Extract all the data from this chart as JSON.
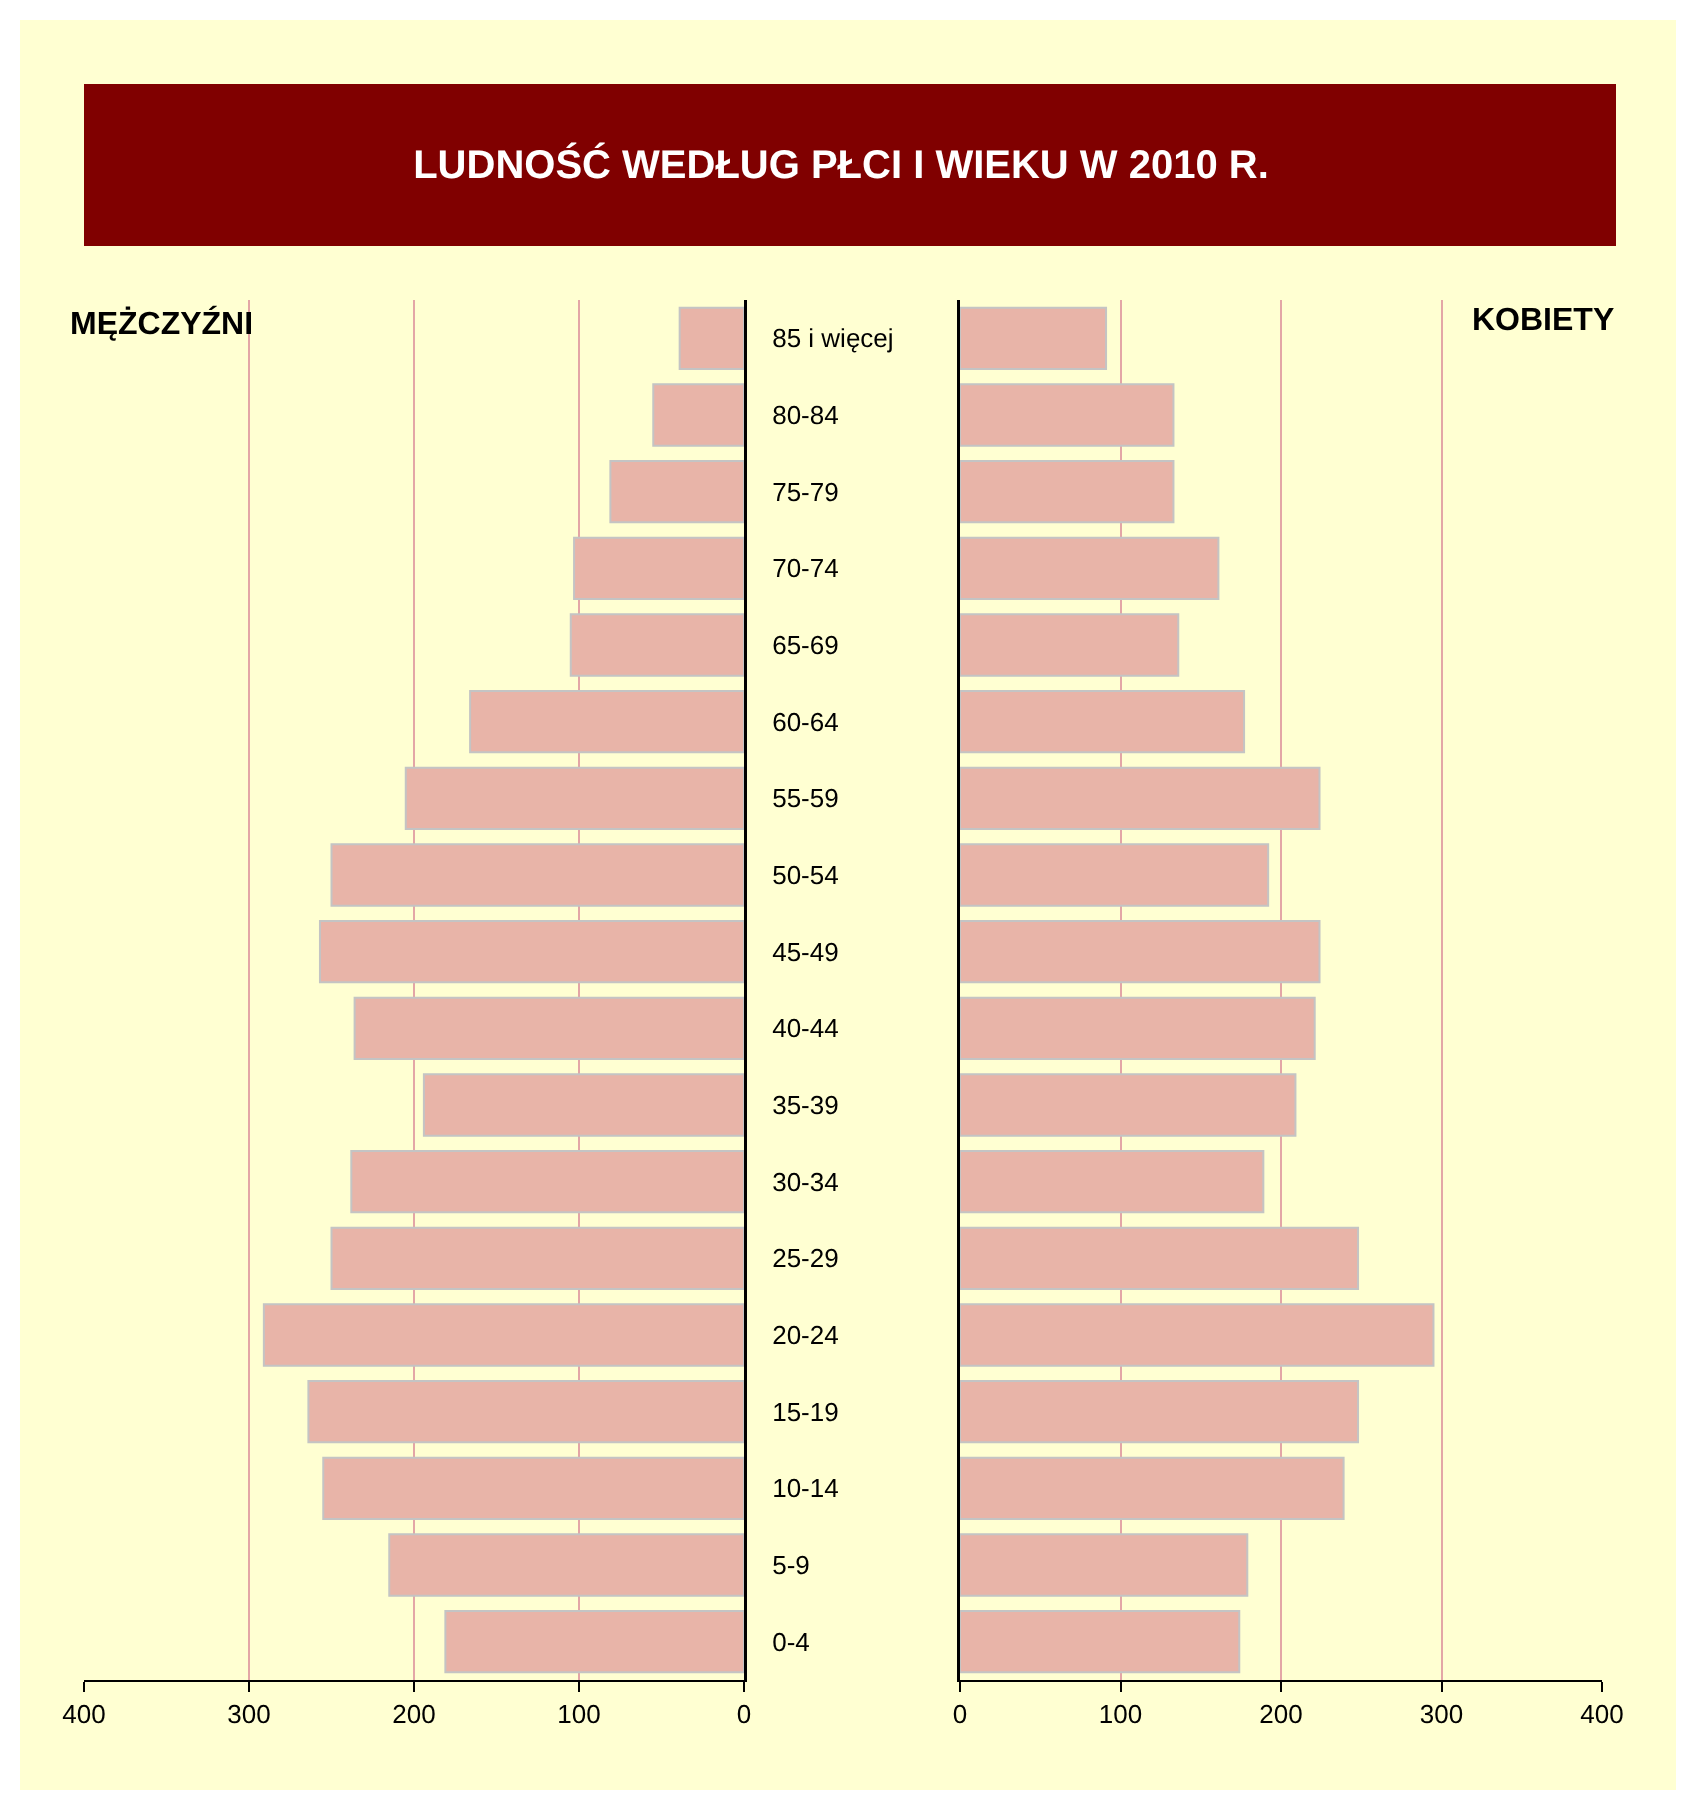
{
  "chart_data": [
    {
      "type": "bar",
      "orientation": "horizontal",
      "title": "LUDNOŚĆ WEDŁUG PŁCI I WIEKU W 2010 R.",
      "categories": [
        "85 i więcej",
        "80-84",
        "75-79",
        "70-74",
        "65-69",
        "60-64",
        "55-59",
        "50-54",
        "45-49",
        "40-44",
        "35-39",
        "30-34",
        "25-29",
        "20-24",
        "15-19",
        "10-14",
        "5-9",
        "0-4"
      ],
      "series": [
        {
          "name": "MĘŻCZYŹNI",
          "color": "#e8b4a8",
          "values": [
            39,
            55,
            81,
            103,
            105,
            166,
            205,
            250,
            257,
            236,
            194,
            238,
            250,
            291,
            264,
            255,
            215,
            181
          ]
        }
      ],
      "xlim": [
        400,
        0
      ],
      "xticks": [
        400,
        300,
        200,
        100,
        0
      ],
      "grid": "x"
    },
    {
      "type": "bar",
      "orientation": "horizontal",
      "categories": [
        "85 i więcej",
        "80-84",
        "75-79",
        "70-74",
        "65-69",
        "60-64",
        "55-59",
        "50-54",
        "45-49",
        "40-44",
        "35-39",
        "30-34",
        "25-29",
        "20-24",
        "15-19",
        "10-14",
        "5-9",
        "0-4"
      ],
      "series": [
        {
          "name": "KOBIETY",
          "color": "#e8b4a8",
          "values": [
            91,
            133,
            133,
            161,
            136,
            177,
            224,
            192,
            224,
            221,
            209,
            189,
            248,
            295,
            248,
            239,
            179,
            174
          ]
        }
      ],
      "xlim": [
        0,
        400
      ],
      "xticks": [
        0,
        100,
        200,
        300,
        400
      ],
      "grid": "x",
      "tick_labels": "x"
    }
  ]
}
